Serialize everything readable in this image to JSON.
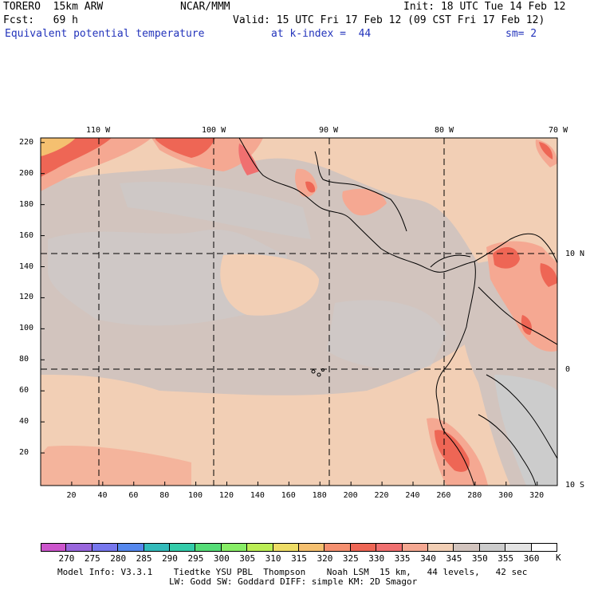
{
  "header": {
    "model": "TORERO  15km ARW",
    "center": "NCAR/MMM",
    "init": "Init: 18 UTC Tue 14 Feb 12",
    "fcst": "Fcst:   69 h",
    "valid": "Valid: 15 UTC Fri 17 Feb 12 (09 CST Fri 17 Feb 12)",
    "field": "Equivalent potential temperature",
    "level": "at k-index =  44",
    "smooth": "sm= 2"
  },
  "axes": {
    "top_lon": [
      "110 W",
      "100 W",
      "90 W",
      "80 W",
      "70 W"
    ],
    "right_lat": [
      "10 N",
      "0",
      "10 S"
    ],
    "left_ticks": [
      "220",
      "200",
      "180",
      "160",
      "140",
      "120",
      "100",
      "80",
      "60",
      "40",
      "20"
    ],
    "bottom_ticks": [
      "20",
      "40",
      "60",
      "80",
      "100",
      "120",
      "140",
      "160",
      "180",
      "200",
      "220",
      "240",
      "260",
      "280",
      "300",
      "320"
    ]
  },
  "colorbar": {
    "unit": "K",
    "labels": [
      "270",
      "275",
      "280",
      "285",
      "290",
      "295",
      "300",
      "305",
      "310",
      "315",
      "320",
      "325",
      "330",
      "335",
      "340",
      "345",
      "350",
      "355",
      "360"
    ],
    "colors": [
      "#cc55cc",
      "#9966dd",
      "#7777ee",
      "#5588ee",
      "#33bbbb",
      "#33ccaa",
      "#55dd77",
      "#88ee66",
      "#bbee55",
      "#eedd66",
      "#f5c070",
      "#f59070",
      "#ee6655",
      "#f07070",
      "#f5a892",
      "#f2cfb5",
      "#d2c4be",
      "#cccccc",
      "#e4e4e4",
      "#ffffff"
    ]
  },
  "footer": {
    "line1": "Model Info: V3.3.1    Tiedtke YSU PBL  Thompson    Noah LSM  15 km,   44 levels,   42 sec",
    "line2": "LW: Godd SW: Goddard DIFF: simple KM: 2D Smagor"
  }
}
